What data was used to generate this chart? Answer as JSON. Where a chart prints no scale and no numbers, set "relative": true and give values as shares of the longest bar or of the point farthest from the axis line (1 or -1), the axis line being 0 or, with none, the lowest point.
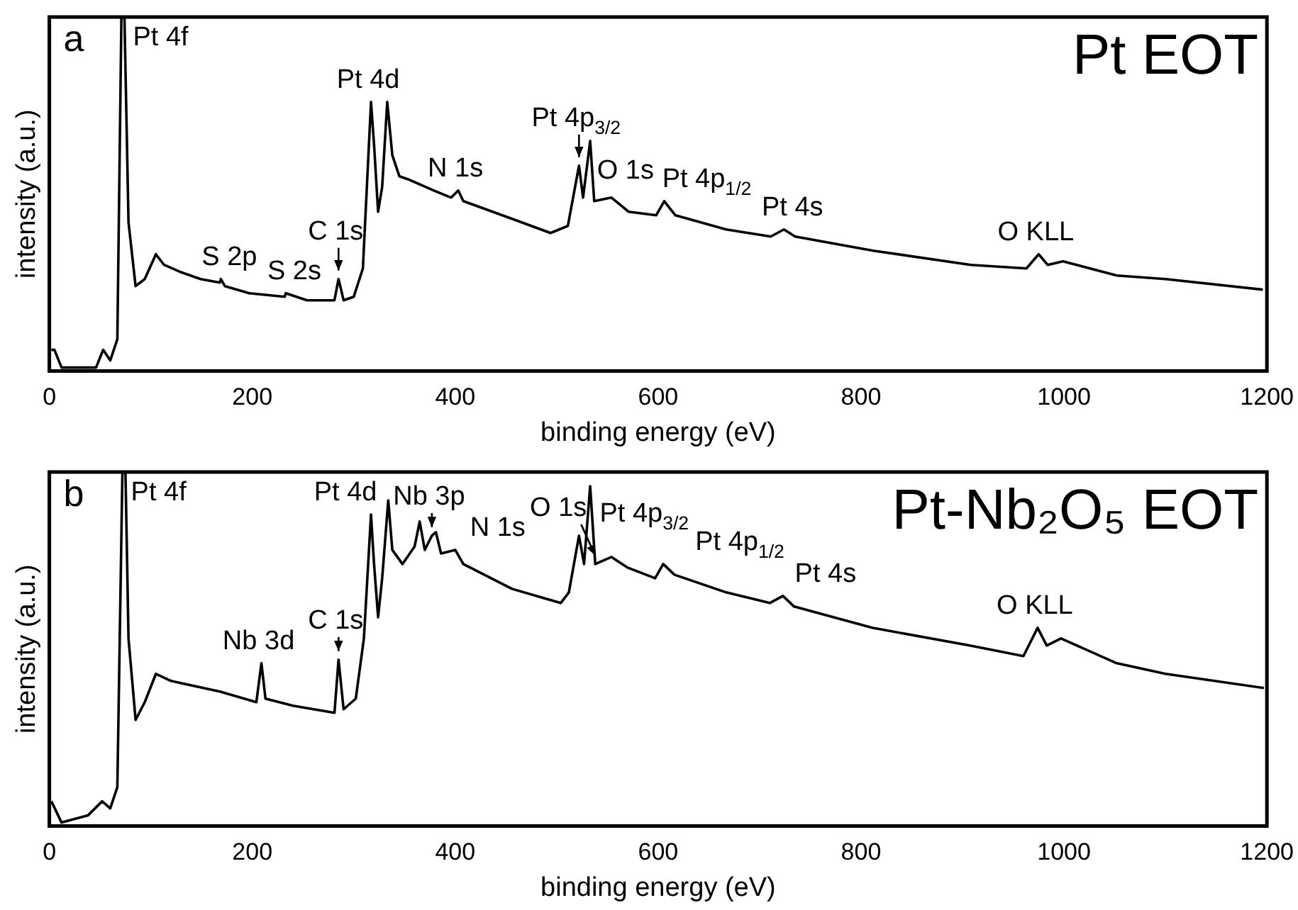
{
  "chart_data": [
    {
      "type": "line",
      "title": "Pt EOT",
      "xlabel": "binding energy (eV)",
      "ylabel": "intensity (a.u.)",
      "relative": true,
      "xlim": [
        0,
        1200
      ],
      "xticks": [
        0,
        200,
        400,
        600,
        800,
        1000,
        1200
      ],
      "grid": false,
      "legend": false,
      "marker": "none",
      "line_style": "solid",
      "series": [
        {
          "color": "#000000",
          "x": [
            2,
            5,
            12,
            24,
            46,
            53,
            60,
            67,
            71,
            74,
            78,
            85,
            94,
            105,
            113,
            129,
            149,
            168,
            169,
            173,
            197,
            232,
            233,
            254,
            281,
            285,
            290,
            300,
            309,
            317,
            320,
            324,
            328,
            333,
            338,
            345,
            355,
            379,
            396,
            403,
            408,
            456,
            494,
            511,
            522,
            526,
            533,
            537,
            554,
            571,
            598,
            606,
            617,
            667,
            711,
            724,
            735,
            812,
            908,
            963,
            975,
            984,
            999,
            1052,
            1100,
            1196
          ],
          "values": [
            0.06,
            0.06,
            0.01,
            0.01,
            0.01,
            0.06,
            0.03,
            0.09,
            1,
            1,
            0.42,
            0.24,
            0.26,
            0.33,
            0.3,
            0.28,
            0.26,
            0.25,
            0.26,
            0.24,
            0.22,
            0.21,
            0.22,
            0.2,
            0.2,
            0.26,
            0.2,
            0.21,
            0.29,
            0.76,
            0.64,
            0.45,
            0.52,
            0.76,
            0.61,
            0.55,
            0.54,
            0.51,
            0.49,
            0.51,
            0.48,
            0.43,
            0.39,
            0.41,
            0.58,
            0.49,
            0.65,
            0.48,
            0.49,
            0.45,
            0.44,
            0.48,
            0.44,
            0.4,
            0.38,
            0.4,
            0.38,
            0.34,
            0.3,
            0.29,
            0.33,
            0.3,
            0.31,
            0.27,
            0.26,
            0.23
          ]
        }
      ],
      "annotations": [
        "a",
        {
          "text": "Pt 4f",
          "x": 74,
          "y": 1
        },
        {
          "text": "S 2p",
          "x": 169,
          "y": 0.26
        },
        {
          "text": "S 2s",
          "x": 233,
          "y": 0.22
        },
        {
          "text": "C 1s",
          "x": 285,
          "y": 0.26
        },
        {
          "text": "Pt 4d",
          "x": 317,
          "y": 0.76
        },
        {
          "text": "N 1s",
          "x": 403,
          "y": 0.51
        },
        {
          "text": "Pt 4p$_{3/2}$",
          "x": 522,
          "y": 0.58
        },
        {
          "text": "O 1s",
          "x": 537,
          "y": 0.48
        },
        {
          "text": "Pt 4p$_{1/2}$",
          "x": 606,
          "y": 0.48
        },
        {
          "text": "Pt 4s",
          "x": 724,
          "y": 0.4
        },
        {
          "text": "O KLL",
          "x": 975,
          "y": 0.33
        }
      ]
    },
    {
      "type": "line",
      "title": "Pt-Nb₂O₅ EOT",
      "xlabel": "binding energy (eV)",
      "ylabel": "intensity (a.u.)",
      "relative": true,
      "xlim": [
        0,
        1200
      ],
      "xticks": [
        0,
        200,
        400,
        600,
        800,
        1000,
        1200
      ],
      "grid": false,
      "legend": false,
      "marker": "none",
      "line_style": "solid",
      "series": [
        {
          "color": "#000000",
          "x": [
            2,
            12,
            38,
            52,
            60,
            67,
            72,
            75,
            78,
            85,
            94,
            105,
            120,
            168,
            204,
            209,
            213,
            240,
            281,
            285,
            290,
            302,
            310,
            317,
            320,
            324,
            328,
            334,
            338,
            348,
            360,
            365,
            370,
            377,
            381,
            386,
            400,
            408,
            456,
            504,
            512,
            522,
            527,
            533,
            538,
            554,
            570,
            597,
            605,
            616,
            667,
            710,
            723,
            734,
            811,
            907,
            960,
            974,
            983,
            997,
            1052,
            1100,
            1197
          ],
          "values": [
            0.07,
            0.01,
            0.03,
            0.07,
            0.05,
            0.11,
            1,
            1,
            0.53,
            0.3,
            0.35,
            0.43,
            0.41,
            0.38,
            0.35,
            0.46,
            0.36,
            0.34,
            0.32,
            0.47,
            0.33,
            0.36,
            0.53,
            0.88,
            0.74,
            0.59,
            0.7,
            0.92,
            0.78,
            0.74,
            0.79,
            0.86,
            0.78,
            0.82,
            0.83,
            0.77,
            0.78,
            0.74,
            0.67,
            0.63,
            0.66,
            0.82,
            0.74,
            0.96,
            0.74,
            0.76,
            0.73,
            0.7,
            0.74,
            0.71,
            0.66,
            0.63,
            0.65,
            0.62,
            0.56,
            0.51,
            0.48,
            0.56,
            0.51,
            0.53,
            0.46,
            0.43,
            0.39
          ]
        }
      ],
      "annotations": [
        "b",
        {
          "text": "Pt 4f",
          "x": 72,
          "y": 1
        },
        {
          "text": "Nb 3d",
          "x": 209,
          "y": 0.46
        },
        {
          "text": "C 1s",
          "x": 285,
          "y": 0.47
        },
        {
          "text": "Pt 4d",
          "x": 317,
          "y": 0.88
        },
        {
          "text": "Nb 3p",
          "x": 377,
          "y": 0.82
        },
        {
          "text": "N 1s",
          "x": 400,
          "y": 0.78
        },
        {
          "text": "Pt 4p$_{3/2}$",
          "x": 522,
          "y": 0.82
        },
        {
          "text": "O 1s",
          "x": 538,
          "y": 0.74
        },
        {
          "text": "Pt 4p$_{1/2}$",
          "x": 605,
          "y": 0.74
        },
        {
          "text": "Pt 4s",
          "x": 723,
          "y": 0.65
        },
        {
          "text": "O KLL",
          "x": 974,
          "y": 0.56
        }
      ]
    }
  ]
}
